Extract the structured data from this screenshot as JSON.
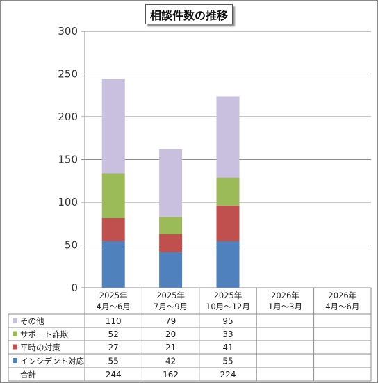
{
  "chart_data": {
    "type": "bar",
    "stacked": true,
    "title": "相談件数の推移",
    "categories": [
      [
        "2025年",
        "4月～6月"
      ],
      [
        "2025年",
        "7月～9月"
      ],
      [
        "2025年",
        "10月～12月"
      ],
      [
        "2026年",
        "1月～3月"
      ],
      [
        "2026年",
        "4月～6月"
      ]
    ],
    "ylim": [
      0,
      300
    ],
    "yticks": [
      "0",
      "50",
      "100",
      "150",
      "200",
      "250",
      "300"
    ],
    "grid": true,
    "legend": "data-table-left",
    "series": [
      {
        "name": "インシデント対応",
        "color": "#4f81bd",
        "values": [
          55,
          42,
          55,
          null,
          null
        ]
      },
      {
        "name": "平時の対策",
        "color": "#c0504d",
        "values": [
          27,
          21,
          41,
          null,
          null
        ]
      },
      {
        "name": "サポート詐欺",
        "color": "#9bbb59",
        "values": [
          52,
          20,
          33,
          null,
          null
        ]
      },
      {
        "name": "その他",
        "color": "#c9bfde",
        "values": [
          110,
          79,
          95,
          null,
          null
        ]
      }
    ],
    "table_rows": [
      {
        "label": "その他",
        "color": "#c9bfde",
        "values": [
          "110",
          "79",
          "95",
          "",
          ""
        ]
      },
      {
        "label": "サポート詐欺",
        "color": "#9bbb59",
        "values": [
          "52",
          "20",
          "33",
          "",
          ""
        ]
      },
      {
        "label": "平時の対策",
        "color": "#c0504d",
        "values": [
          "27",
          "21",
          "41",
          "",
          ""
        ]
      },
      {
        "label": "インシデント対応",
        "color": "#4f81bd",
        "values": [
          "55",
          "42",
          "55",
          "",
          ""
        ]
      },
      {
        "label": "合計",
        "color": null,
        "values": [
          "244",
          "162",
          "224",
          "",
          ""
        ]
      }
    ]
  }
}
